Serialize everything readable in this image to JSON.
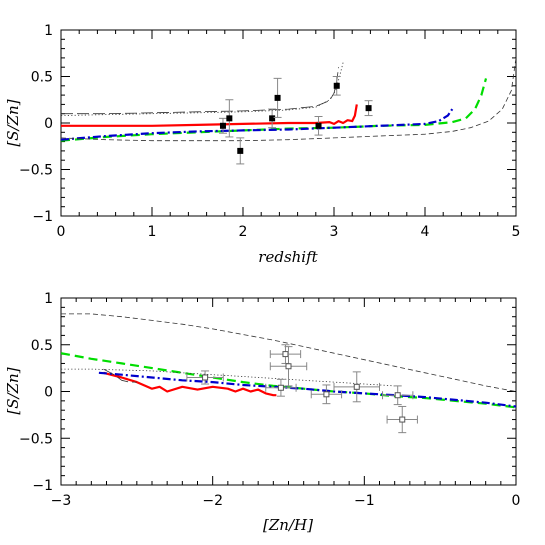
{
  "chart_data": [
    {
      "type": "line",
      "xlabel": "redshift",
      "ylabel": "[S/Zn]",
      "xlim": [
        0,
        5
      ],
      "ylim": [
        -1,
        1
      ],
      "xticks": [
        "0",
        "1",
        "2",
        "3",
        "4",
        "5"
      ],
      "yticks": [
        "1",
        "0.5",
        "0",
        "−0.5",
        "−1"
      ],
      "xtick_values": [
        0,
        1,
        2,
        3,
        4,
        5
      ],
      "ytick_values": [
        1,
        0.5,
        0,
        -0.5,
        -1
      ],
      "series": [
        {
          "style": "solid",
          "color": "#ff0000",
          "x": [
            0,
            0.5,
            1,
            1.5,
            2,
            2.5,
            2.8,
            2.95,
            3.0,
            3.05,
            3.1,
            3.15,
            3.2,
            3.23,
            3.25
          ],
          "y": [
            -0.03,
            -0.03,
            -0.03,
            -0.02,
            -0.01,
            -0.0,
            0.0,
            0.01,
            -0.01,
            0.02,
            0.0,
            0.03,
            0.02,
            0.08,
            0.2
          ]
        },
        {
          "style": "dashed",
          "color": "#00dd00",
          "x": [
            0,
            0.5,
            1,
            1.5,
            2,
            2.5,
            3,
            3.5,
            4,
            4.3,
            4.45,
            4.55,
            4.62,
            4.67
          ],
          "y": [
            -0.19,
            -0.15,
            -0.12,
            -0.1,
            -0.08,
            -0.06,
            -0.05,
            -0.03,
            -0.02,
            0.01,
            0.05,
            0.15,
            0.3,
            0.48
          ]
        },
        {
          "style": "dashdot",
          "color": "#0000cc",
          "x": [
            0,
            0.5,
            1,
            1.5,
            2,
            2.5,
            3,
            3.5,
            4,
            4.15,
            4.25,
            4.3
          ],
          "y": [
            -0.18,
            -0.14,
            -0.11,
            -0.09,
            -0.08,
            -0.07,
            -0.05,
            -0.03,
            -0.01,
            0.02,
            0.08,
            0.15
          ]
        },
        {
          "style": "longdash",
          "color": "#333333",
          "x": [
            0,
            0.5,
            1,
            1.5,
            2,
            2.5,
            2.8,
            2.95,
            3.0,
            3.03,
            3.05
          ],
          "y": [
            0.1,
            0.1,
            0.11,
            0.12,
            0.13,
            0.15,
            0.18,
            0.24,
            0.32,
            0.45,
            0.6
          ]
        },
        {
          "style": "dotted",
          "color": "#333333",
          "x": [
            0,
            0.5,
            1,
            1.5,
            2,
            2.5,
            2.8,
            2.95,
            3.02,
            3.06,
            3.1
          ],
          "y": [
            0.08,
            0.09,
            0.1,
            0.11,
            0.12,
            0.14,
            0.17,
            0.25,
            0.35,
            0.5,
            0.65
          ]
        },
        {
          "style": "shortdash",
          "color": "#333333",
          "x": [
            0,
            0.5,
            1,
            1.5,
            2,
            2.5,
            3,
            3.5,
            4,
            4.3,
            4.5,
            4.7,
            4.85,
            4.95,
            5.0
          ],
          "y": [
            -0.16,
            -0.18,
            -0.19,
            -0.19,
            -0.19,
            -0.18,
            -0.16,
            -0.14,
            -0.12,
            -0.09,
            -0.05,
            0.02,
            0.15,
            0.35,
            0.7
          ]
        }
      ],
      "points": [
        {
          "x": 1.78,
          "y": -0.03,
          "xerr": 0,
          "yerr": 0.08,
          "marker": "filled-square"
        },
        {
          "x": 1.85,
          "y": 0.05,
          "xerr": 0,
          "yerr": 0.2,
          "marker": "filled-square"
        },
        {
          "x": 1.97,
          "y": -0.3,
          "xerr": 0,
          "yerr": 0.14,
          "marker": "filled-square"
        },
        {
          "x": 2.32,
          "y": 0.05,
          "xerr": 0,
          "yerr": 0.1,
          "marker": "filled-square"
        },
        {
          "x": 2.38,
          "y": 0.27,
          "xerr": 0,
          "yerr": 0.21,
          "marker": "filled-square"
        },
        {
          "x": 2.83,
          "y": -0.03,
          "xerr": 0,
          "yerr": 0.1,
          "marker": "filled-square"
        },
        {
          "x": 3.03,
          "y": 0.4,
          "xerr": 0,
          "yerr": 0.1,
          "marker": "filled-square"
        },
        {
          "x": 3.38,
          "y": 0.16,
          "xerr": 0,
          "yerr": 0.08,
          "marker": "filled-square"
        }
      ]
    },
    {
      "type": "line",
      "xlabel": "[Zn/H]",
      "ylabel": "[S/Zn]",
      "xlim": [
        -3,
        0
      ],
      "ylim": [
        -1,
        1
      ],
      "xticks": [
        "−3",
        "−2",
        "−1",
        "0"
      ],
      "yticks": [
        "1",
        "0.5",
        "0",
        "−0.5",
        "−1"
      ],
      "xtick_values": [
        -3,
        -2,
        -1,
        0
      ],
      "ytick_values": [
        1,
        0.5,
        0,
        -0.5,
        -1
      ],
      "series": [
        {
          "style": "solid",
          "color": "#ff0000",
          "x": [
            -2.72,
            -2.6,
            -2.5,
            -2.4,
            -2.35,
            -2.3,
            -2.2,
            -2.1,
            -2.0,
            -1.9,
            -1.85,
            -1.8,
            -1.75,
            -1.7,
            -1.65,
            -1.6,
            -1.58
          ],
          "y": [
            0.2,
            0.15,
            0.1,
            0.03,
            0.05,
            0.0,
            0.05,
            0.02,
            0.05,
            0.03,
            0.0,
            0.03,
            0.0,
            0.02,
            -0.02,
            -0.04,
            -0.04
          ]
        },
        {
          "style": "dashed",
          "color": "#00dd00",
          "x": [
            -3.0,
            -2.8,
            -2.6,
            -2.4,
            -2.2,
            -2.0,
            -1.8,
            -1.6,
            -1.4,
            -1.2,
            -1.0,
            -0.8,
            -0.6,
            -0.4,
            -0.2,
            0.0
          ],
          "y": [
            0.41,
            0.35,
            0.3,
            0.25,
            0.2,
            0.15,
            0.1,
            0.06,
            0.03,
            0.0,
            -0.02,
            -0.05,
            -0.07,
            -0.1,
            -0.13,
            -0.17
          ]
        },
        {
          "style": "dashdot",
          "color": "#0000cc",
          "x": [
            -2.75,
            -2.6,
            -2.4,
            -2.2,
            -2.0,
            -1.8,
            -1.6,
            -1.4,
            -1.2,
            -1.0,
            -0.8,
            -0.6,
            -0.4,
            -0.2,
            0.0
          ],
          "y": [
            0.2,
            0.18,
            0.15,
            0.12,
            0.1,
            0.07,
            0.05,
            0.03,
            0.0,
            -0.02,
            -0.04,
            -0.06,
            -0.09,
            -0.12,
            -0.16
          ]
        },
        {
          "style": "shortdash",
          "color": "#333333",
          "x": [
            -3.0,
            -2.8,
            -2.6,
            -2.4,
            -2.2,
            -2.0,
            -1.8,
            -1.6,
            -1.4,
            -1.2,
            -1.0,
            -0.8,
            -0.6,
            -0.4,
            -0.2,
            0.0
          ],
          "y": [
            0.83,
            0.83,
            0.8,
            0.76,
            0.72,
            0.67,
            0.61,
            0.55,
            0.48,
            0.41,
            0.34,
            0.27,
            0.2,
            0.13,
            0.06,
            0.0
          ]
        },
        {
          "style": "dotted",
          "color": "#333333",
          "x": [
            -3.0,
            -2.8,
            -2.6,
            -2.4,
            -2.2,
            -2.0,
            -1.8,
            -1.6,
            -1.4,
            -1.2,
            -1.0,
            -0.8
          ],
          "y": [
            0.24,
            0.24,
            0.23,
            0.22,
            0.2,
            0.18,
            0.16,
            0.14,
            0.12,
            0.1,
            0.08,
            0.06
          ]
        },
        {
          "style": "longdash",
          "color": "#333333",
          "x": [
            -2.72,
            -2.65,
            -2.6,
            -2.55,
            -2.5
          ],
          "y": [
            0.24,
            0.18,
            0.12,
            0.1,
            0.1
          ]
        }
      ],
      "points": [
        {
          "x": -2.05,
          "y": 0.15,
          "xerr": 0.12,
          "yerr": 0.07,
          "marker": "open-square"
        },
        {
          "x": -1.52,
          "y": 0.4,
          "xerr": 0.1,
          "yerr": 0.1,
          "marker": "open-square"
        },
        {
          "x": -1.5,
          "y": 0.27,
          "xerr": 0.12,
          "yerr": 0.21,
          "marker": "open-square"
        },
        {
          "x": -1.55,
          "y": 0.04,
          "xerr": 0.1,
          "yerr": 0.09,
          "marker": "open-square"
        },
        {
          "x": -1.25,
          "y": -0.03,
          "xerr": 0.1,
          "yerr": 0.1,
          "marker": "open-square"
        },
        {
          "x": -1.05,
          "y": 0.05,
          "xerr": 0.15,
          "yerr": 0.16,
          "marker": "open-square"
        },
        {
          "x": -0.78,
          "y": -0.04,
          "xerr": 0.1,
          "yerr": 0.1,
          "marker": "open-square"
        },
        {
          "x": -0.75,
          "y": -0.3,
          "xerr": 0.1,
          "yerr": 0.14,
          "marker": "open-square"
        }
      ]
    }
  ]
}
